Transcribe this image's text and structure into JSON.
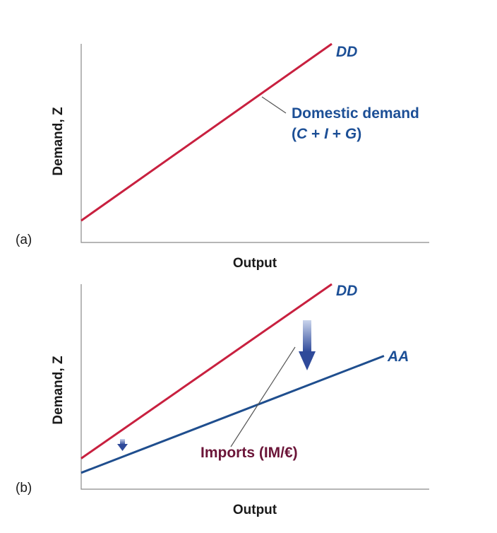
{
  "colors": {
    "dd": "#c8203f",
    "aa": "#1f4e8e",
    "dd_label": "#1c4f96",
    "imports_label": "#6b1538",
    "arrow_light": "#c9d4ec",
    "arrow_dark": "#2f4a9a"
  },
  "chart_data": [
    {
      "type": "line",
      "panel_label": "(a)",
      "xlabel": "Output",
      "ylabel": "Demand, Z",
      "xlim": [
        0,
        100
      ],
      "ylim": [
        0,
        100
      ],
      "series": [
        {
          "name": "DD",
          "x": [
            0,
            72
          ],
          "y": [
            11,
            100
          ]
        }
      ],
      "annotations": {
        "dd_desc_line1": "Domestic demand",
        "dd_desc_line2": "(C + I + G)"
      }
    },
    {
      "type": "line",
      "panel_label": "(b)",
      "xlabel": "Output",
      "ylabel": "Demand, Z",
      "xlim": [
        0,
        100
      ],
      "ylim": [
        0,
        100
      ],
      "series": [
        {
          "name": "DD",
          "x": [
            0,
            72
          ],
          "y": [
            15,
            100
          ]
        },
        {
          "name": "AA",
          "x": [
            0,
            87
          ],
          "y": [
            8,
            65
          ]
        }
      ],
      "annotations": {
        "imports_text": "Imports (IM/€)"
      }
    }
  ]
}
